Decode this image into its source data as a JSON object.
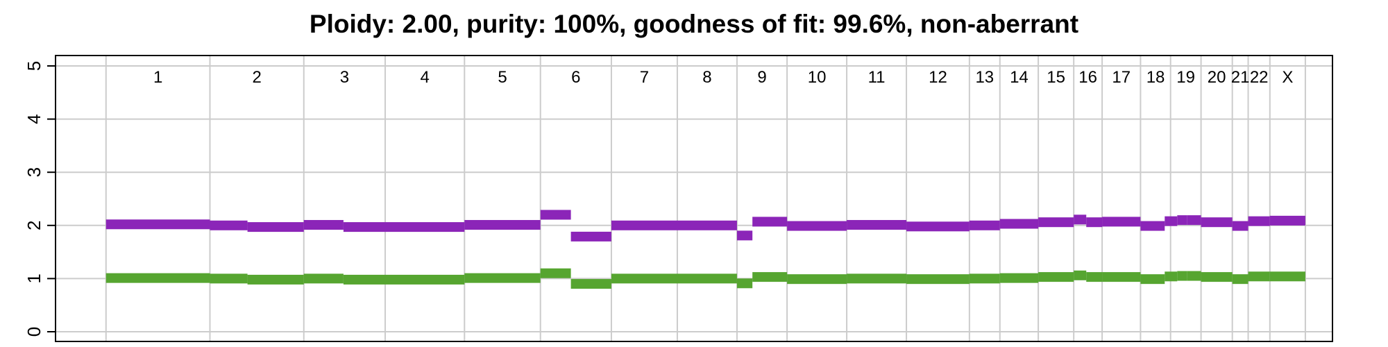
{
  "chart_data": {
    "type": "segment",
    "title": "Ploidy: 2.00, purity: 100%, goodness of fit: 99.6%, non-aberrant",
    "xlabel": "",
    "ylabel": "",
    "ylim": [
      0,
      5
    ],
    "y_ticks": [
      "0",
      "1",
      "2",
      "3",
      "4",
      "5"
    ],
    "grid": true,
    "colors": {
      "major": "#8b25b8",
      "minor": "#56a530",
      "grid": "#cccccc"
    },
    "chromosomes": [
      {
        "label": "1",
        "x": [
          1,
          250
        ]
      },
      {
        "label": "2",
        "x": [
          250,
          475
        ]
      },
      {
        "label": "3",
        "x": [
          475,
          670
        ]
      },
      {
        "label": "4",
        "x": [
          670,
          860
        ]
      },
      {
        "label": "5",
        "x": [
          860,
          1042
        ]
      },
      {
        "label": "6",
        "x": [
          1042,
          1212
        ]
      },
      {
        "label": "7",
        "x": [
          1212,
          1370
        ]
      },
      {
        "label": "8",
        "x": [
          1370,
          1513
        ]
      },
      {
        "label": "9",
        "x": [
          1513,
          1633
        ]
      },
      {
        "label": "10",
        "x": [
          1633,
          1776
        ]
      },
      {
        "label": "11",
        "x": [
          1776,
          1919
        ]
      },
      {
        "label": "12",
        "x": [
          1919,
          2070
        ]
      },
      {
        "label": "13",
        "x": [
          2070,
          2143
        ]
      },
      {
        "label": "14",
        "x": [
          2143,
          2235
        ]
      },
      {
        "label": "15",
        "x": [
          2235,
          2320
        ]
      },
      {
        "label": "16",
        "x": [
          2320,
          2388
        ]
      },
      {
        "label": "17",
        "x": [
          2388,
          2480
        ]
      },
      {
        "label": "18",
        "x": [
          2480,
          2552
        ]
      },
      {
        "label": "19",
        "x": [
          2552,
          2625
        ]
      },
      {
        "label": "20",
        "x": [
          2625,
          2700
        ]
      },
      {
        "label": "21",
        "x": [
          2700,
          2738
        ]
      },
      {
        "label": "22",
        "x": [
          2738,
          2790
        ]
      },
      {
        "label": "X",
        "x": [
          2790,
          2875
        ]
      }
    ],
    "xlim": [
      -120,
      2940
    ],
    "series": [
      {
        "color": "#8b25b8",
        "segments": [
          [
            1,
            250,
            2.02
          ],
          [
            250,
            340,
            2.0
          ],
          [
            340,
            475,
            1.97
          ],
          [
            475,
            570,
            2.01
          ],
          [
            570,
            860,
            1.97
          ],
          [
            860,
            1042,
            2.01
          ],
          [
            1042,
            1115,
            2.2
          ],
          [
            1115,
            1212,
            1.79
          ],
          [
            1212,
            1513,
            2.0
          ],
          [
            1513,
            1550,
            1.81
          ],
          [
            1550,
            1633,
            2.07
          ],
          [
            1633,
            1776,
            1.99
          ],
          [
            1776,
            1919,
            2.01
          ],
          [
            1919,
            2070,
            1.98
          ],
          [
            2070,
            2143,
            2.0
          ],
          [
            2143,
            2235,
            2.03
          ],
          [
            2235,
            2320,
            2.06
          ],
          [
            2320,
            2350,
            2.11
          ],
          [
            2350,
            2388,
            2.06
          ],
          [
            2388,
            2480,
            2.07
          ],
          [
            2480,
            2538,
            1.99
          ],
          [
            2538,
            2568,
            2.08
          ],
          [
            2568,
            2592,
            2.1
          ],
          [
            2592,
            2625,
            2.1
          ],
          [
            2625,
            2700,
            2.06
          ],
          [
            2700,
            2738,
            1.99
          ],
          [
            2738,
            2790,
            2.08
          ],
          [
            2790,
            2875,
            2.09
          ]
        ]
      },
      {
        "color": "#56a530",
        "segments": [
          [
            1,
            250,
            1.01
          ],
          [
            250,
            340,
            1.0
          ],
          [
            340,
            475,
            0.98
          ],
          [
            475,
            570,
            1.0
          ],
          [
            570,
            860,
            0.98
          ],
          [
            860,
            1042,
            1.01
          ],
          [
            1042,
            1115,
            1.1
          ],
          [
            1115,
            1212,
            0.9
          ],
          [
            1212,
            1513,
            1.0
          ],
          [
            1513,
            1550,
            0.91
          ],
          [
            1550,
            1633,
            1.03
          ],
          [
            1633,
            1776,
            0.99
          ],
          [
            1776,
            1919,
            1.0
          ],
          [
            1919,
            2070,
            0.99
          ],
          [
            2070,
            2143,
            1.0
          ],
          [
            2143,
            2235,
            1.01
          ],
          [
            2235,
            2320,
            1.03
          ],
          [
            2320,
            2350,
            1.06
          ],
          [
            2350,
            2388,
            1.03
          ],
          [
            2388,
            2480,
            1.03
          ],
          [
            2480,
            2538,
            0.99
          ],
          [
            2538,
            2568,
            1.04
          ],
          [
            2568,
            2592,
            1.05
          ],
          [
            2592,
            2625,
            1.05
          ],
          [
            2625,
            2700,
            1.03
          ],
          [
            2700,
            2738,
            0.99
          ],
          [
            2738,
            2790,
            1.04
          ],
          [
            2790,
            2875,
            1.04
          ]
        ]
      }
    ]
  }
}
